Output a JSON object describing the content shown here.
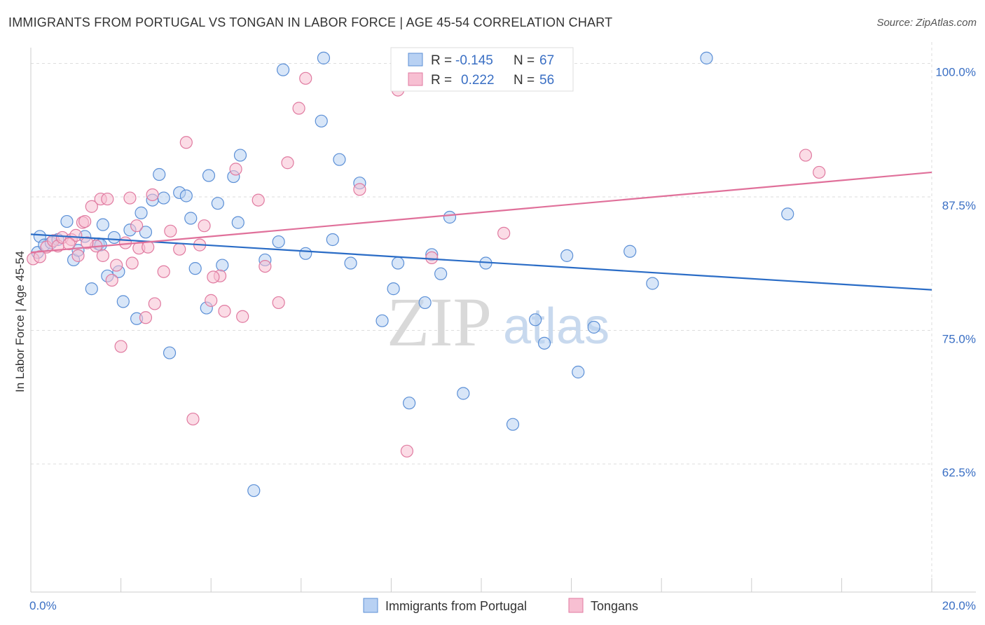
{
  "title": "IMMIGRANTS FROM PORTUGAL VS TONGAN IN LABOR FORCE | AGE 45-54 CORRELATION CHART",
  "source": "Source: ZipAtlas.com",
  "watermark": {
    "zip": "ZIP",
    "atlas": "atlas"
  },
  "colors": {
    "blue_fill": "#b8d1f3",
    "blue_stroke": "#5b8fd6",
    "blue_line": "#2a6cc6",
    "pink_fill": "#f7bfd2",
    "pink_stroke": "#e07aa0",
    "pink_line": "#e0709a",
    "grid": "#dddddd",
    "accent_text": "#3a6fc4"
  },
  "stats_box": {
    "rows": [
      {
        "r_label": "R =",
        "r_value": "-0.145",
        "n_label": "N =",
        "n_value": "67",
        "color": "blue"
      },
      {
        "r_label": "R =",
        "r_value": "0.222",
        "n_label": "N =",
        "n_value": "56",
        "color": "pink"
      }
    ]
  },
  "chart_data": {
    "type": "scatter",
    "title": "IMMIGRANTS FROM PORTUGAL VS TONGAN IN LABOR FORCE | AGE 45-54 CORRELATION CHART",
    "xlabel": "",
    "ylabel": "In Labor Force | Age 45-54",
    "xlim": [
      0,
      20
    ],
    "ylim": [
      50.5,
      102
    ],
    "x_tick_labels": [
      {
        "value": 0,
        "label": "0.0%"
      },
      {
        "value": 20,
        "label": "20.0%"
      }
    ],
    "x_minor_ticks": [
      0,
      2,
      4,
      6,
      8,
      10,
      12,
      14,
      16,
      18,
      20
    ],
    "y_ticks": [
      {
        "value": 100,
        "label": "100.0%"
      },
      {
        "value": 87.5,
        "label": "87.5%"
      },
      {
        "value": 75,
        "label": "75.0%"
      },
      {
        "value": 62.5,
        "label": "62.5%"
      }
    ],
    "grid": true,
    "legend_position": "bottom",
    "series": [
      {
        "name": "Immigrants from Portugal",
        "color": "blue",
        "trend": {
          "x": [
            0,
            20
          ],
          "y": [
            84.0,
            78.8
          ]
        },
        "points": [
          [
            0.15,
            82.3
          ],
          [
            0.2,
            83.8
          ],
          [
            0.3,
            83.0
          ],
          [
            0.45,
            83.2
          ],
          [
            0.6,
            83.5
          ],
          [
            0.8,
            85.2
          ],
          [
            0.95,
            81.6
          ],
          [
            1.05,
            82.5
          ],
          [
            1.2,
            83.8
          ],
          [
            1.35,
            78.9
          ],
          [
            1.5,
            83.1
          ],
          [
            1.6,
            84.9
          ],
          [
            1.7,
            80.1
          ],
          [
            1.85,
            83.7
          ],
          [
            1.95,
            80.5
          ],
          [
            2.05,
            77.7
          ],
          [
            2.2,
            84.4
          ],
          [
            2.35,
            76.1
          ],
          [
            2.45,
            86.0
          ],
          [
            2.55,
            84.2
          ],
          [
            2.7,
            87.2
          ],
          [
            2.85,
            89.6
          ],
          [
            2.95,
            87.4
          ],
          [
            3.08,
            72.9
          ],
          [
            3.3,
            87.9
          ],
          [
            3.45,
            87.6
          ],
          [
            3.55,
            85.5
          ],
          [
            3.65,
            80.8
          ],
          [
            3.9,
            77.1
          ],
          [
            3.95,
            89.5
          ],
          [
            4.15,
            86.9
          ],
          [
            4.25,
            81.1
          ],
          [
            4.5,
            89.4
          ],
          [
            4.6,
            85.1
          ],
          [
            4.65,
            91.4
          ],
          [
            4.95,
            60.0
          ],
          [
            5.2,
            81.6
          ],
          [
            5.5,
            83.3
          ],
          [
            5.6,
            99.4
          ],
          [
            6.1,
            82.2
          ],
          [
            6.45,
            94.6
          ],
          [
            6.5,
            100.5
          ],
          [
            6.7,
            83.5
          ],
          [
            6.85,
            91.0
          ],
          [
            7.1,
            81.3
          ],
          [
            7.3,
            88.8
          ],
          [
            7.8,
            75.9
          ],
          [
            8.05,
            78.9
          ],
          [
            8.15,
            81.3
          ],
          [
            8.4,
            68.2
          ],
          [
            8.75,
            77.6
          ],
          [
            8.9,
            82.1
          ],
          [
            9.1,
            80.3
          ],
          [
            9.3,
            85.6
          ],
          [
            9.6,
            69.1
          ],
          [
            10.1,
            81.3
          ],
          [
            10.7,
            66.2
          ],
          [
            11.2,
            76.0
          ],
          [
            11.4,
            73.8
          ],
          [
            11.9,
            82.0
          ],
          [
            12.15,
            71.1
          ],
          [
            12.5,
            75.3
          ],
          [
            13.3,
            82.4
          ],
          [
            13.8,
            79.4
          ],
          [
            15.0,
            100.5
          ],
          [
            16.8,
            85.9
          ],
          [
            1.55,
            83.0
          ]
        ]
      },
      {
        "name": "Tongans",
        "color": "pink",
        "trend": {
          "x": [
            0,
            20
          ],
          "y": [
            82.3,
            89.8
          ]
        },
        "points": [
          [
            0.05,
            81.7
          ],
          [
            0.2,
            81.9
          ],
          [
            0.35,
            82.8
          ],
          [
            0.5,
            83.4
          ],
          [
            0.6,
            82.9
          ],
          [
            0.7,
            83.7
          ],
          [
            0.9,
            83.5
          ],
          [
            1.0,
            83.9
          ],
          [
            1.05,
            82.0
          ],
          [
            1.15,
            85.1
          ],
          [
            1.2,
            85.2
          ],
          [
            1.35,
            86.6
          ],
          [
            1.45,
            82.9
          ],
          [
            1.55,
            87.3
          ],
          [
            1.6,
            82.0
          ],
          [
            1.7,
            87.3
          ],
          [
            1.8,
            79.7
          ],
          [
            1.9,
            81.1
          ],
          [
            2.0,
            73.5
          ],
          [
            2.1,
            83.2
          ],
          [
            2.2,
            87.4
          ],
          [
            2.35,
            84.8
          ],
          [
            2.4,
            82.7
          ],
          [
            2.55,
            76.2
          ],
          [
            2.6,
            82.8
          ],
          [
            2.7,
            87.7
          ],
          [
            2.75,
            77.5
          ],
          [
            2.95,
            80.5
          ],
          [
            3.1,
            84.3
          ],
          [
            3.3,
            82.6
          ],
          [
            3.45,
            92.6
          ],
          [
            3.6,
            66.7
          ],
          [
            3.75,
            83.0
          ],
          [
            3.85,
            84.8
          ],
          [
            4.0,
            77.8
          ],
          [
            4.2,
            80.1
          ],
          [
            4.3,
            76.8
          ],
          [
            4.55,
            90.1
          ],
          [
            4.7,
            76.3
          ],
          [
            5.05,
            87.2
          ],
          [
            5.2,
            81.0
          ],
          [
            5.5,
            77.6
          ],
          [
            5.7,
            90.7
          ],
          [
            5.95,
            95.8
          ],
          [
            6.1,
            98.6
          ],
          [
            7.3,
            88.2
          ],
          [
            8.15,
            97.5
          ],
          [
            8.35,
            63.7
          ],
          [
            8.9,
            81.8
          ],
          [
            10.5,
            84.1
          ],
          [
            17.2,
            91.4
          ],
          [
            17.5,
            89.8
          ],
          [
            1.25,
            83.2
          ],
          [
            0.85,
            83.1
          ],
          [
            2.25,
            81.3
          ],
          [
            4.05,
            80.0
          ]
        ]
      }
    ]
  }
}
